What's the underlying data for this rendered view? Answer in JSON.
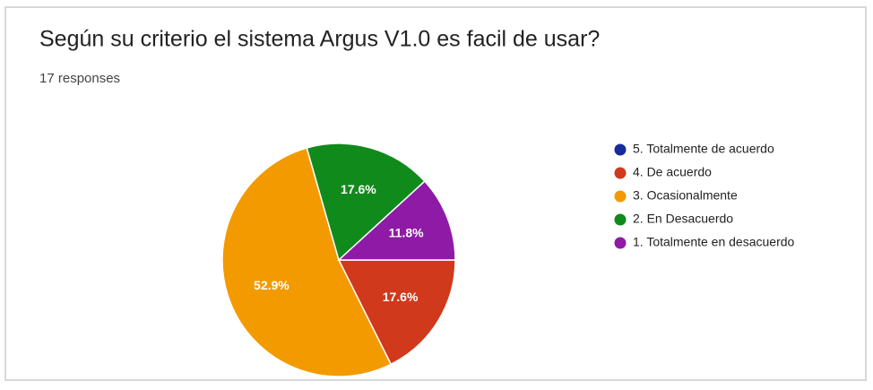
{
  "chart_data": {
    "type": "pie",
    "title": "Según su criterio el sistema Argus V1.0 es facil de usar?",
    "subtitle": "17 responses",
    "categories": [
      "5. Totalmente de acuerdo",
      "4. De acuerdo",
      "3. Ocasionalmente",
      "2. En Desacuerdo",
      "1. Totalmente en desacuerdo"
    ],
    "values": [
      0,
      17.6,
      52.9,
      17.6,
      11.8
    ],
    "value_labels": [
      null,
      "17.6%",
      "52.9%",
      "17.6%",
      "11.8%"
    ],
    "colors": [
      "#1a2a9c",
      "#d0391c",
      "#f29a00",
      "#118a1c",
      "#8e1aa6"
    ],
    "legend": "right"
  }
}
